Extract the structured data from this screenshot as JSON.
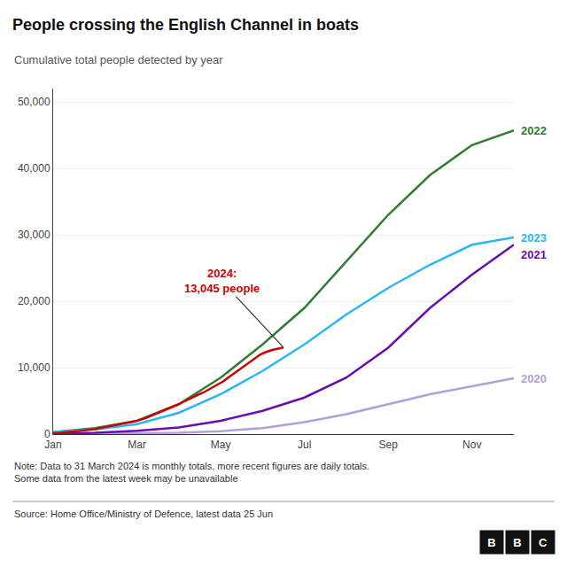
{
  "chart_data": {
    "type": "line",
    "title": "People crossing the English Channel in boats",
    "subtitle": "Cumulative total people detected by year",
    "note": "Note: Data to 31 March 2024 is monthly totals, more recent figures are daily totals.\nSome data from the latest week may be unavailable",
    "source": "Source: Home Office/Ministry of Defence, latest data 25 Jun",
    "logo": "BBC",
    "xlim": [
      1,
      12
    ],
    "xticks": [
      {
        "value": 1,
        "label": "Jan"
      },
      {
        "value": 3,
        "label": "Mar"
      },
      {
        "value": 5,
        "label": "May"
      },
      {
        "value": 7,
        "label": "Jul"
      },
      {
        "value": 9,
        "label": "Sep"
      },
      {
        "value": 11,
        "label": "Nov"
      }
    ],
    "ylim": [
      0,
      52000
    ],
    "yticks": [
      0,
      {
        "value": 10000,
        "label": "10,000"
      },
      {
        "value": 20000,
        "label": "20,000"
      },
      {
        "value": 30000,
        "label": "30,000"
      },
      {
        "value": 40000,
        "label": "40,000"
      },
      {
        "value": 50000,
        "label": "50,000"
      }
    ],
    "grid": true,
    "series": [
      {
        "name": "2020",
        "color": "#b39ddb",
        "x": [
          1,
          2,
          3,
          4,
          5,
          6,
          7,
          8,
          9,
          10,
          11,
          12
        ],
        "values": [
          20,
          50,
          100,
          200,
          450,
          900,
          1800,
          3000,
          4500,
          6000,
          7200,
          8400
        ]
      },
      {
        "name": "2021",
        "color": "#6a0dad",
        "x": [
          1,
          2,
          3,
          4,
          5,
          6,
          7,
          8,
          9,
          10,
          11,
          12
        ],
        "values": [
          50,
          200,
          500,
          1000,
          2000,
          3500,
          5500,
          8500,
          13000,
          19000,
          24000,
          28500
        ]
      },
      {
        "name": "2022",
        "color": "#2e7d32",
        "x": [
          1,
          2,
          3,
          4,
          5,
          6,
          7,
          8,
          9,
          10,
          11,
          12
        ],
        "values": [
          300,
          900,
          2000,
          4500,
          8500,
          13500,
          19000,
          26000,
          33000,
          39000,
          43500,
          45700
        ]
      },
      {
        "name": "2023",
        "color": "#29b6f6",
        "x": [
          1,
          2,
          3,
          4,
          5,
          6,
          7,
          8,
          9,
          10,
          11,
          12
        ],
        "values": [
          300,
          700,
          1500,
          3200,
          6000,
          9500,
          13500,
          18000,
          22000,
          25500,
          28500,
          29600
        ]
      },
      {
        "name": "2024",
        "color": "#cc0000",
        "x": [
          1,
          1.3,
          1.6,
          2,
          2.3,
          2.6,
          3,
          3.2,
          3.4,
          3.6,
          3.8,
          4,
          4.15,
          4.3,
          4.45,
          4.6,
          4.75,
          4.9,
          5.05,
          5.2,
          5.35,
          5.5,
          5.65,
          5.8,
          5.95,
          6.1,
          6.25,
          6.5
        ],
        "values": [
          100,
          250,
          450,
          750,
          1100,
          1500,
          2000,
          2400,
          2900,
          3400,
          3900,
          4500,
          5000,
          5500,
          5900,
          6300,
          6800,
          7300,
          7900,
          8600,
          9300,
          10000,
          10700,
          11400,
          12000,
          12400,
          12700,
          13045
        ]
      }
    ],
    "annotations": [
      {
        "text": "2024:\n13,045 people",
        "x": 6.5,
        "y": 13045,
        "color": "#cc0000"
      },
      {
        "text": "2022",
        "y": 45700
      },
      {
        "text": "2023",
        "y": 29600
      },
      {
        "text": "2021",
        "y": 27000
      },
      {
        "text": "2020",
        "y": 8400
      }
    ]
  }
}
